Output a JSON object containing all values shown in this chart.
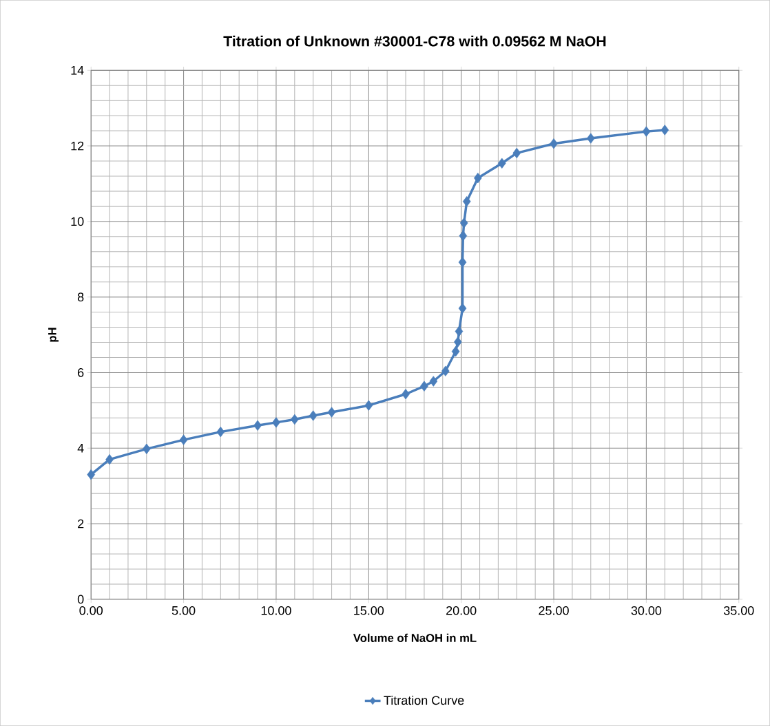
{
  "chart_data": {
    "type": "line",
    "title": "Titration of Unknown #30001-C78 with 0.09562 M NaOH",
    "xlabel": "Volume of NaOH in mL",
    "ylabel": "pH",
    "x": [
      0,
      1,
      3,
      5,
      7,
      9,
      10,
      11,
      12,
      13,
      15,
      17,
      18,
      18.5,
      19.15,
      19.7,
      19.82,
      19.88,
      20.07,
      20.07,
      20.1,
      20.15,
      20.3,
      20.9,
      22.2,
      23,
      25,
      27,
      30,
      31
    ],
    "series": [
      {
        "name": "Titration Curve",
        "color": "#4a7ebb",
        "values": [
          3.3,
          3.7,
          3.98,
          4.22,
          4.43,
          4.6,
          4.68,
          4.76,
          4.86,
          4.95,
          5.13,
          5.43,
          5.64,
          5.77,
          6.04,
          6.56,
          6.81,
          7.09,
          7.7,
          8.92,
          9.62,
          9.96,
          10.53,
          11.15,
          11.54,
          11.81,
          12.06,
          12.2,
          12.38,
          12.42
        ]
      }
    ],
    "xlim": [
      0,
      35
    ],
    "ylim": [
      0,
      14
    ],
    "xticks": [
      {
        "value": 0,
        "label": "0.00"
      },
      {
        "value": 5,
        "label": "5.00"
      },
      {
        "value": 10,
        "label": "10.00"
      },
      {
        "value": 15,
        "label": "15.00"
      },
      {
        "value": 20,
        "label": "20.00"
      },
      {
        "value": 25,
        "label": "25.00"
      },
      {
        "value": 30,
        "label": "30.00"
      },
      {
        "value": 35,
        "label": "35.00"
      }
    ],
    "yticks": [
      0,
      2,
      4,
      6,
      8,
      10,
      12,
      14
    ],
    "grid": true,
    "legend": "bottom",
    "marker": "diamond",
    "line_style": "solid"
  }
}
